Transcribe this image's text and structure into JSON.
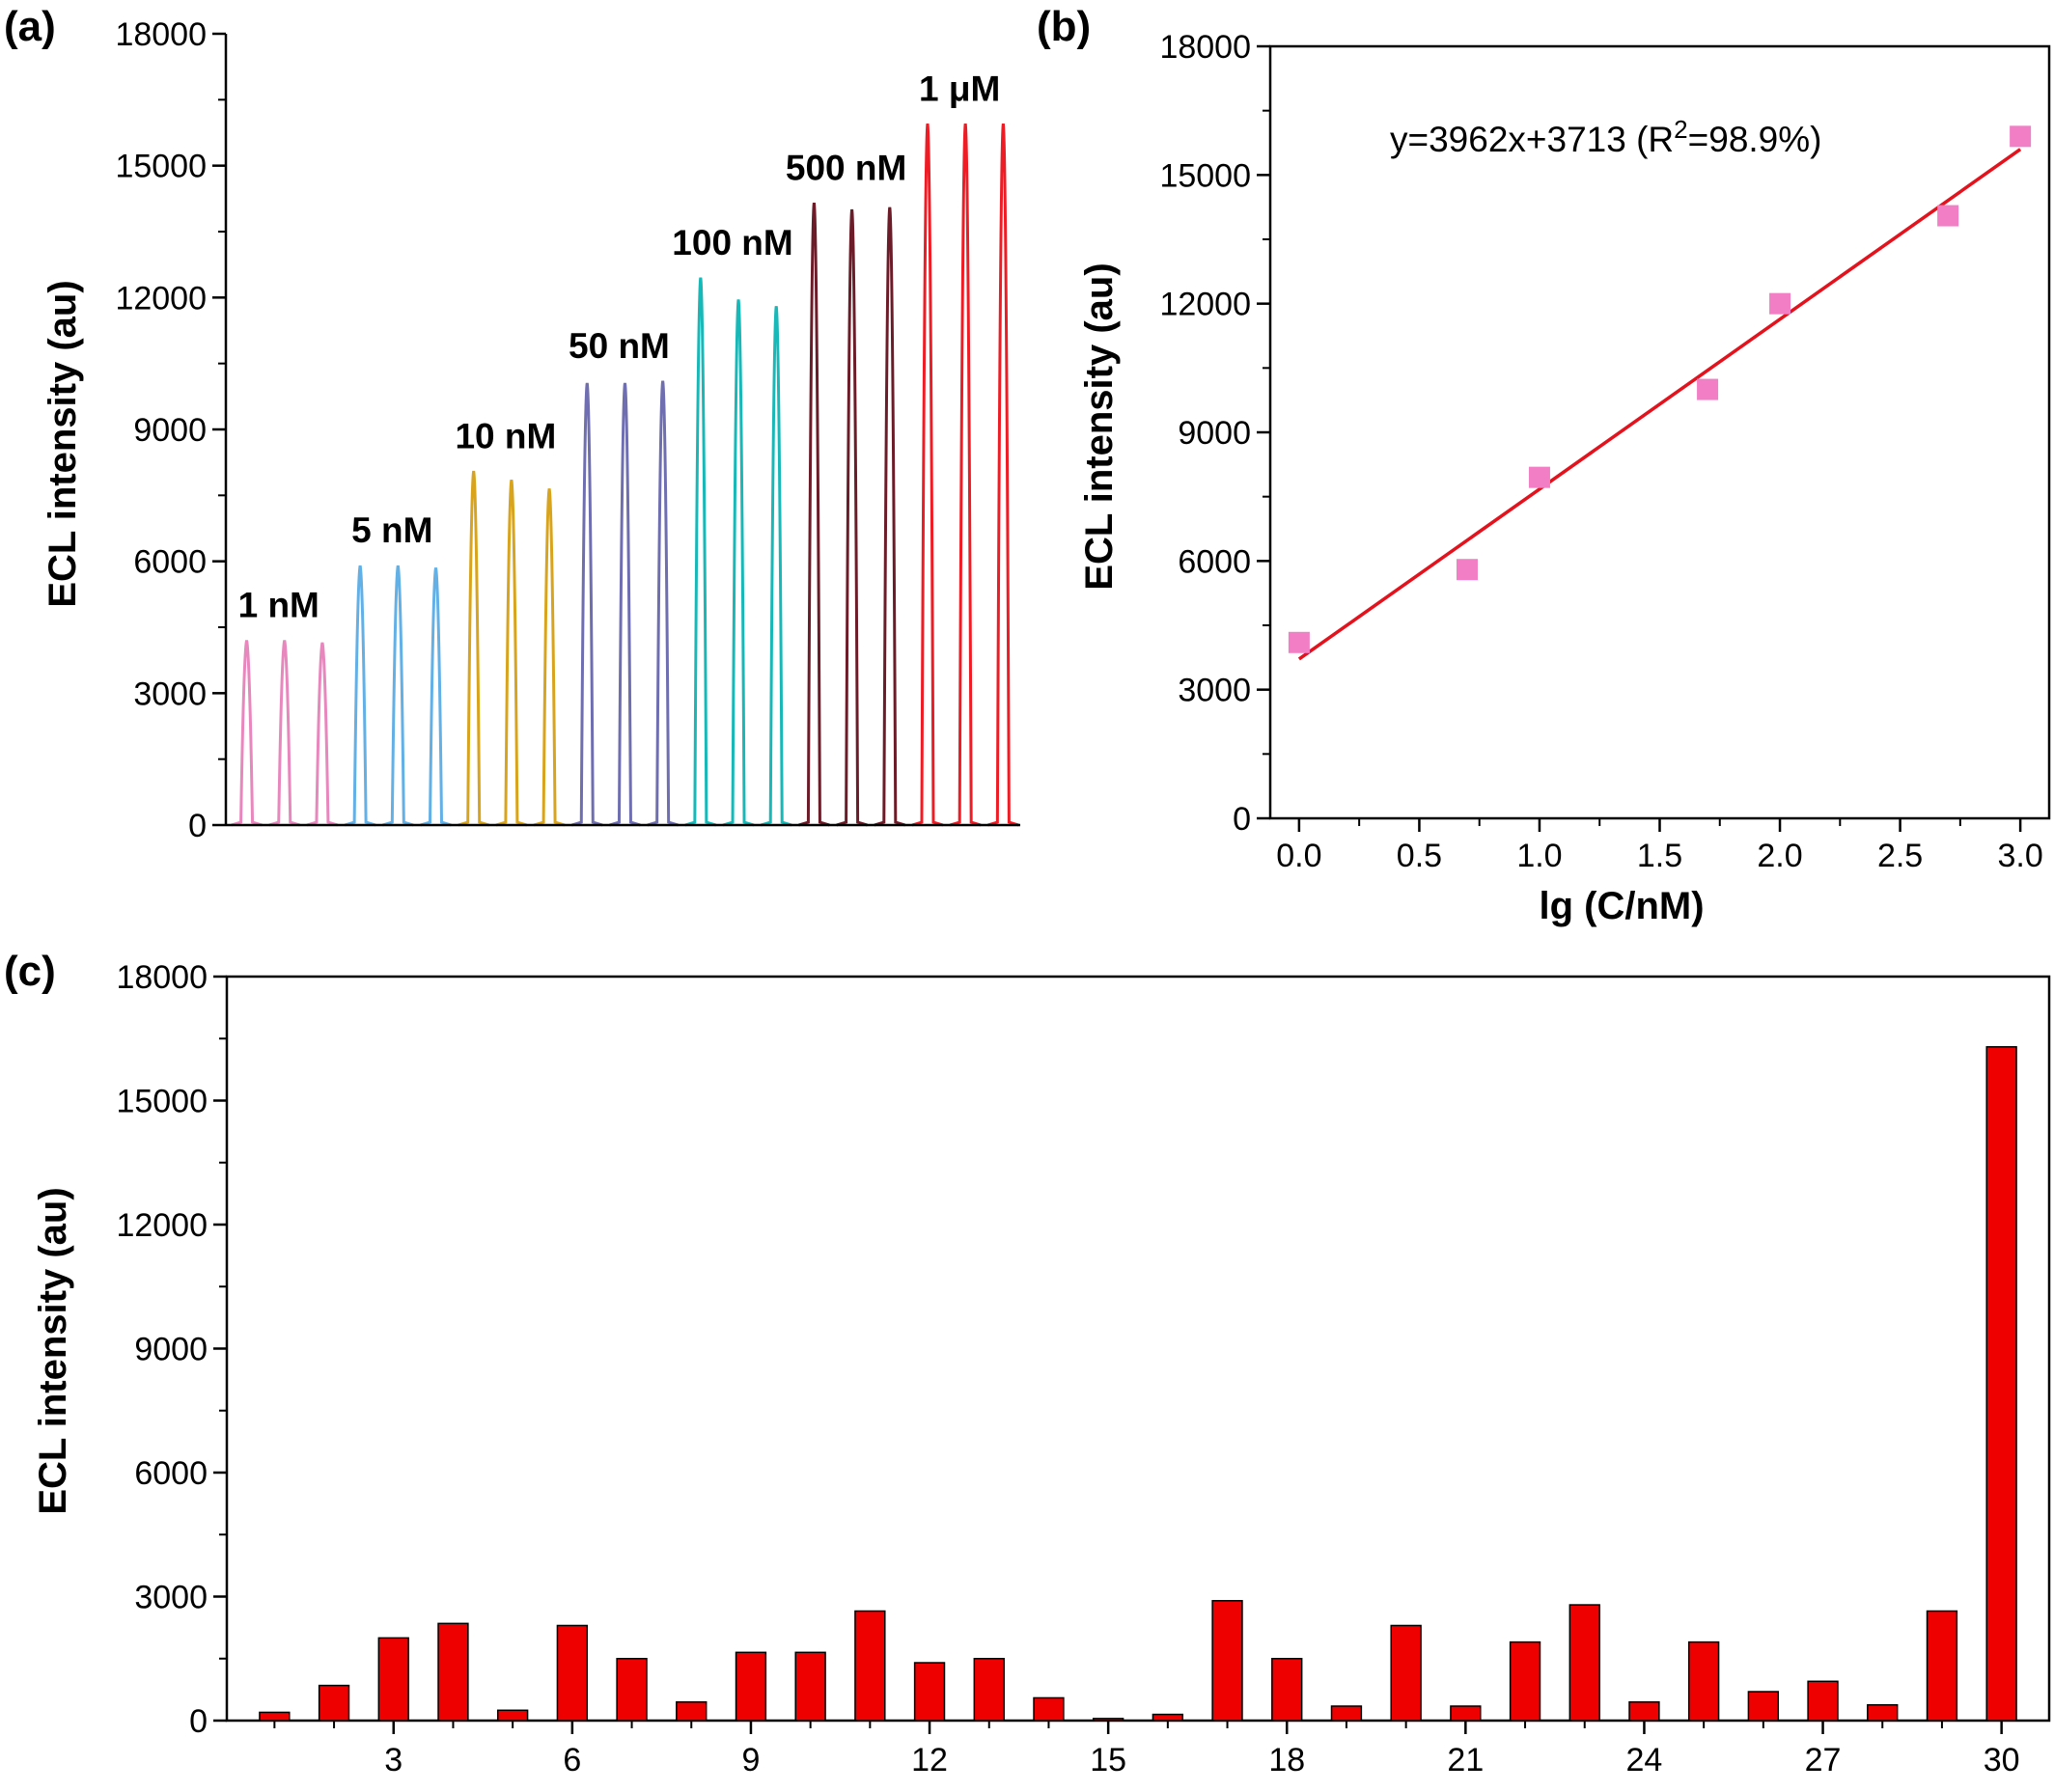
{
  "figure": {
    "panel_labels": [
      "(a)",
      "(b)",
      "(c)"
    ]
  },
  "chart_data": [
    {
      "panel": "(a)",
      "type": "line",
      "ylabel": "ECL intensity (au)",
      "ylim": [
        0,
        18000
      ],
      "yticks": [
        0,
        3000,
        6000,
        9000,
        12000,
        15000,
        18000
      ],
      "grid": false,
      "series": [
        {
          "name": "1 nM",
          "color": "#e887bd",
          "values": [
            4200,
            4200,
            4150
          ]
        },
        {
          "name": "5 nM",
          "color": "#63b0e6",
          "values": [
            5900,
            5900,
            5850
          ]
        },
        {
          "name": "10 nM",
          "color": "#d9a41d",
          "values": [
            8050,
            7850,
            7650
          ]
        },
        {
          "name": "50 nM",
          "color": "#6f6eb0",
          "values": [
            10050,
            10050,
            10100
          ]
        },
        {
          "name": "100 nM",
          "color": "#19b8b8",
          "values": [
            12450,
            11950,
            11800
          ]
        },
        {
          "name": "500 nM",
          "color": "#6b1c28",
          "values": [
            14150,
            14000,
            14050
          ]
        },
        {
          "name": "1 μM",
          "color": "#ee1c24",
          "values": [
            15950,
            15950,
            15950
          ]
        }
      ]
    },
    {
      "panel": "(b)",
      "type": "scatter",
      "xlabel": "lg (C/nM)",
      "ylabel": "ECL intensity (au)",
      "xlim": [
        -0.12,
        3.12
      ],
      "ylim": [
        0,
        18000
      ],
      "xticks": [
        "0.0",
        "0.5",
        "1.0",
        "1.5",
        "2.0",
        "2.5",
        "3.0"
      ],
      "yticks": [
        0,
        3000,
        6000,
        9000,
        12000,
        15000,
        18000
      ],
      "grid": false,
      "annotation": {
        "prefix": "y=3962x+3713  (R",
        "sup": "2",
        "suffix": "=98.9%)"
      },
      "marker_color": "#f27fc6",
      "line_color": "#e3121c",
      "fit": {
        "slope": 3962,
        "intercept": 3713
      },
      "points": [
        {
          "x": 0.0,
          "y": 4100
        },
        {
          "x": 0.699,
          "y": 5800
        },
        {
          "x": 1.0,
          "y": 7950
        },
        {
          "x": 1.699,
          "y": 10000
        },
        {
          "x": 2.0,
          "y": 12000
        },
        {
          "x": 2.699,
          "y": 14050
        },
        {
          "x": 3.0,
          "y": 15900
        }
      ]
    },
    {
      "panel": "(c)",
      "type": "bar",
      "ylabel": "ECL intensity (au)",
      "ylim": [
        0,
        18000
      ],
      "xlim": [
        0.2,
        30.8
      ],
      "yticks": [
        0,
        3000,
        6000,
        9000,
        12000,
        15000,
        18000
      ],
      "xticks": [
        3,
        6,
        9,
        12,
        15,
        18,
        21,
        24,
        27,
        30
      ],
      "grid": false,
      "bar_color": "#ee0000",
      "categories": [
        1,
        2,
        3,
        4,
        5,
        6,
        7,
        8,
        9,
        10,
        11,
        12,
        13,
        14,
        15,
        16,
        17,
        18,
        19,
        20,
        21,
        22,
        23,
        24,
        25,
        26,
        27,
        28,
        29,
        30
      ],
      "values": [
        200,
        850,
        2000,
        2350,
        250,
        2300,
        1500,
        450,
        1650,
        1650,
        2650,
        1400,
        1500,
        550,
        50,
        150,
        2900,
        1500,
        350,
        2300,
        350,
        1900,
        2800,
        450,
        1900,
        700,
        950,
        380,
        2650,
        16300
      ]
    }
  ]
}
